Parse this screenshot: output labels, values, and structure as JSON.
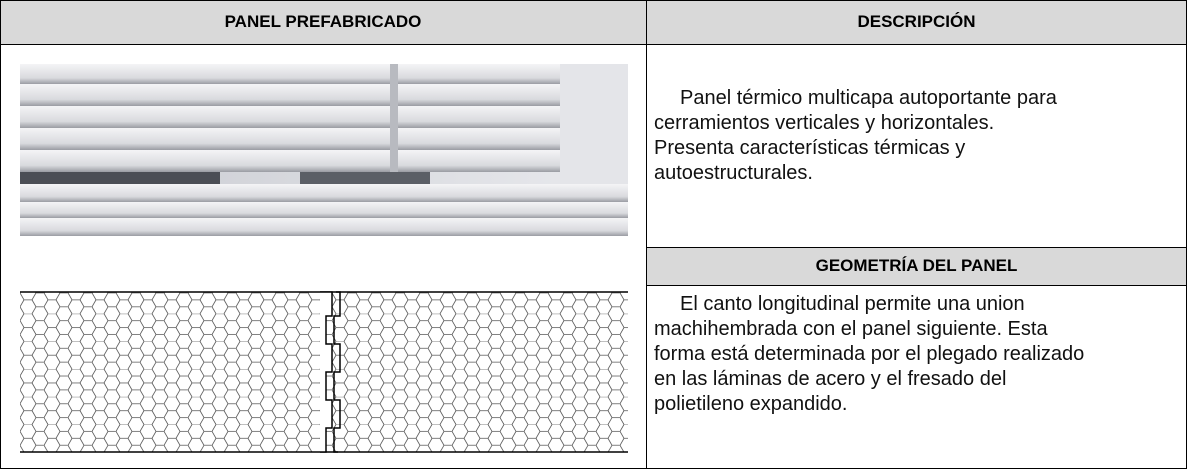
{
  "header": {
    "panel": "PANEL PREFABRICADO",
    "description": "DESCRIPCIÓN"
  },
  "description": {
    "lines": [
      "Panel térmico multicapa  autoportante para",
      "cerramientos verticales y horizontales.",
      "Presenta características térmicas y",
      "autoestructurales."
    ]
  },
  "geometry": {
    "title": "GEOMETRÍA DEL PANEL",
    "lines": [
      "El canto longitudinal permite una union",
      "machihembrada con el panel siguiente. Esta",
      "forma está determinada por el plegado realizado",
      "en las láminas de acero y el fresado del",
      "polietileno expandido."
    ]
  }
}
